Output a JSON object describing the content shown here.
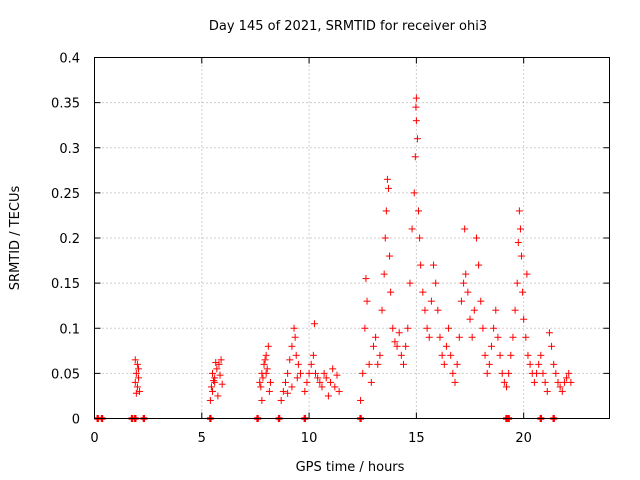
{
  "chart_data": {
    "type": "scatter",
    "title": "Day 145 of 2021, SRMTID for receiver ohi3",
    "xlabel": "GPS time / hours",
    "ylabel": "SRMTID / TECUs",
    "xlim": [
      0,
      24
    ],
    "ylim": [
      0,
      0.4
    ],
    "x_ticks": [
      0,
      5,
      10,
      15,
      20
    ],
    "y_ticks": [
      0,
      0.05,
      0.1,
      0.15,
      0.2,
      0.25,
      0.3,
      0.35,
      0.4
    ],
    "x_tick_labels": [
      "0",
      "5",
      "10",
      "15",
      "20"
    ],
    "y_tick_labels": [
      "0",
      "0.05",
      "0.1",
      "0.15",
      "0.2",
      "0.25",
      "0.3",
      "0.35",
      "0.4"
    ],
    "grid": true,
    "marker": "+",
    "color": "#ff0000",
    "series": [
      {
        "name": "ohi3",
        "points": [
          [
            0.15,
            0
          ],
          [
            0.35,
            0
          ],
          [
            1.75,
            0
          ],
          [
            1.9,
            0
          ],
          [
            2.3,
            0
          ],
          [
            5.4,
            0
          ],
          [
            7.6,
            0
          ],
          [
            8.6,
            0
          ],
          [
            9.8,
            0
          ],
          [
            12.4,
            0
          ],
          [
            19.2,
            0
          ],
          [
            19.3,
            0
          ],
          [
            20.8,
            0
          ],
          [
            21.4,
            0
          ],
          [
            1.9,
            0.065
          ],
          [
            2.0,
            0.06
          ],
          [
            1.95,
            0.05
          ],
          [
            2.05,
            0.045
          ],
          [
            1.9,
            0.04
          ],
          [
            2.0,
            0.035
          ],
          [
            2.1,
            0.03
          ],
          [
            1.95,
            0.028
          ],
          [
            2.05,
            0.055
          ],
          [
            5.4,
            0.02
          ],
          [
            5.5,
            0.03
          ],
          [
            5.6,
            0.045
          ],
          [
            5.5,
            0.05
          ],
          [
            5.7,
            0.055
          ],
          [
            5.8,
            0.06
          ],
          [
            5.9,
            0.065
          ],
          [
            5.6,
            0.04
          ],
          [
            5.45,
            0.035
          ],
          [
            5.75,
            0.025
          ],
          [
            5.85,
            0.048
          ],
          [
            5.95,
            0.038
          ],
          [
            5.65,
            0.062
          ],
          [
            5.55,
            0.042
          ],
          [
            7.7,
            0.04
          ],
          [
            7.8,
            0.05
          ],
          [
            7.9,
            0.06
          ],
          [
            8.0,
            0.07
          ],
          [
            8.1,
            0.08
          ],
          [
            8.0,
            0.05
          ],
          [
            7.75,
            0.035
          ],
          [
            7.85,
            0.045
          ],
          [
            8.15,
            0.03
          ],
          [
            7.95,
            0.065
          ],
          [
            8.05,
            0.055
          ],
          [
            7.8,
            0.02
          ],
          [
            8.2,
            0.04
          ],
          [
            8.7,
            0.02
          ],
          [
            8.8,
            0.03
          ],
          [
            8.9,
            0.04
          ],
          [
            9.0,
            0.05
          ],
          [
            9.1,
            0.065
          ],
          [
            9.2,
            0.08
          ],
          [
            9.3,
            0.1
          ],
          [
            9.35,
            0.09
          ],
          [
            9.4,
            0.07
          ],
          [
            9.5,
            0.06
          ],
          [
            9.6,
            0.05
          ],
          [
            9.2,
            0.035
          ],
          [
            9.0,
            0.028
          ],
          [
            9.45,
            0.045
          ],
          [
            9.8,
            0.03
          ],
          [
            9.9,
            0.04
          ],
          [
            10.0,
            0.05
          ],
          [
            10.1,
            0.06
          ],
          [
            10.2,
            0.07
          ],
          [
            10.3,
            0.05
          ],
          [
            10.4,
            0.045
          ],
          [
            10.5,
            0.04
          ],
          [
            10.6,
            0.035
          ],
          [
            10.7,
            0.05
          ],
          [
            10.8,
            0.045
          ],
          [
            11.0,
            0.04
          ],
          [
            11.2,
            0.035
          ],
          [
            11.4,
            0.03
          ],
          [
            10.25,
            0.105
          ],
          [
            10.9,
            0.025
          ],
          [
            11.1,
            0.055
          ],
          [
            11.3,
            0.048
          ],
          [
            12.4,
            0.02
          ],
          [
            12.5,
            0.05
          ],
          [
            12.6,
            0.1
          ],
          [
            12.7,
            0.13
          ],
          [
            12.65,
            0.155
          ],
          [
            12.8,
            0.06
          ],
          [
            12.9,
            0.04
          ],
          [
            13.0,
            0.08
          ],
          [
            13.1,
            0.09
          ],
          [
            13.2,
            0.06
          ],
          [
            13.3,
            0.07
          ],
          [
            13.4,
            0.12
          ],
          [
            13.5,
            0.16
          ],
          [
            13.55,
            0.2
          ],
          [
            13.6,
            0.23
          ],
          [
            13.65,
            0.265
          ],
          [
            13.7,
            0.255
          ],
          [
            13.75,
            0.18
          ],
          [
            13.8,
            0.14
          ],
          [
            13.9,
            0.1
          ],
          [
            14.0,
            0.085
          ],
          [
            14.1,
            0.08
          ],
          [
            14.2,
            0.095
          ],
          [
            14.3,
            0.07
          ],
          [
            14.4,
            0.06
          ],
          [
            14.5,
            0.08
          ],
          [
            14.6,
            0.1
          ],
          [
            14.7,
            0.15
          ],
          [
            14.8,
            0.21
          ],
          [
            14.9,
            0.25
          ],
          [
            14.95,
            0.29
          ],
          [
            15.0,
            0.33
          ],
          [
            15.0,
            0.355
          ],
          [
            14.98,
            0.345
          ],
          [
            15.05,
            0.31
          ],
          [
            15.1,
            0.23
          ],
          [
            15.15,
            0.2
          ],
          [
            15.2,
            0.17
          ],
          [
            15.3,
            0.14
          ],
          [
            15.4,
            0.12
          ],
          [
            15.5,
            0.1
          ],
          [
            15.6,
            0.09
          ],
          [
            15.7,
            0.13
          ],
          [
            15.8,
            0.17
          ],
          [
            15.9,
            0.15
          ],
          [
            16.0,
            0.12
          ],
          [
            16.1,
            0.09
          ],
          [
            16.2,
            0.07
          ],
          [
            16.3,
            0.06
          ],
          [
            16.4,
            0.08
          ],
          [
            16.5,
            0.1
          ],
          [
            16.6,
            0.07
          ],
          [
            16.7,
            0.05
          ],
          [
            16.8,
            0.04
          ],
          [
            16.9,
            0.06
          ],
          [
            17.0,
            0.09
          ],
          [
            17.1,
            0.13
          ],
          [
            17.2,
            0.15
          ],
          [
            17.25,
            0.21
          ],
          [
            17.3,
            0.16
          ],
          [
            17.4,
            0.14
          ],
          [
            17.5,
            0.11
          ],
          [
            17.6,
            0.09
          ],
          [
            17.7,
            0.12
          ],
          [
            17.8,
            0.2
          ],
          [
            17.9,
            0.17
          ],
          [
            18.0,
            0.13
          ],
          [
            18.1,
            0.1
          ],
          [
            18.2,
            0.07
          ],
          [
            18.3,
            0.05
          ],
          [
            18.4,
            0.06
          ],
          [
            18.5,
            0.08
          ],
          [
            18.6,
            0.1
          ],
          [
            18.7,
            0.12
          ],
          [
            18.8,
            0.09
          ],
          [
            18.9,
            0.07
          ],
          [
            19.0,
            0.05
          ],
          [
            19.1,
            0.04
          ],
          [
            19.2,
            0.035
          ],
          [
            19.3,
            0.05
          ],
          [
            19.4,
            0.07
          ],
          [
            19.5,
            0.09
          ],
          [
            19.6,
            0.12
          ],
          [
            19.7,
            0.15
          ],
          [
            19.75,
            0.195
          ],
          [
            19.8,
            0.23
          ],
          [
            19.85,
            0.21
          ],
          [
            19.9,
            0.18
          ],
          [
            19.95,
            0.14
          ],
          [
            20.0,
            0.11
          ],
          [
            20.1,
            0.09
          ],
          [
            20.15,
            0.16
          ],
          [
            20.2,
            0.07
          ],
          [
            20.3,
            0.06
          ],
          [
            20.4,
            0.05
          ],
          [
            20.5,
            0.04
          ],
          [
            20.6,
            0.05
          ],
          [
            20.7,
            0.06
          ],
          [
            20.8,
            0.07
          ],
          [
            20.9,
            0.05
          ],
          [
            21.0,
            0.04
          ],
          [
            21.1,
            0.03
          ],
          [
            21.2,
            0.095
          ],
          [
            21.3,
            0.08
          ],
          [
            21.4,
            0.06
          ],
          [
            21.5,
            0.05
          ],
          [
            21.6,
            0.04
          ],
          [
            21.7,
            0.035
          ],
          [
            21.8,
            0.03
          ],
          [
            21.9,
            0.04
          ],
          [
            22.0,
            0.045
          ],
          [
            22.1,
            0.05
          ],
          [
            22.2,
            0.04
          ]
        ]
      }
    ]
  }
}
